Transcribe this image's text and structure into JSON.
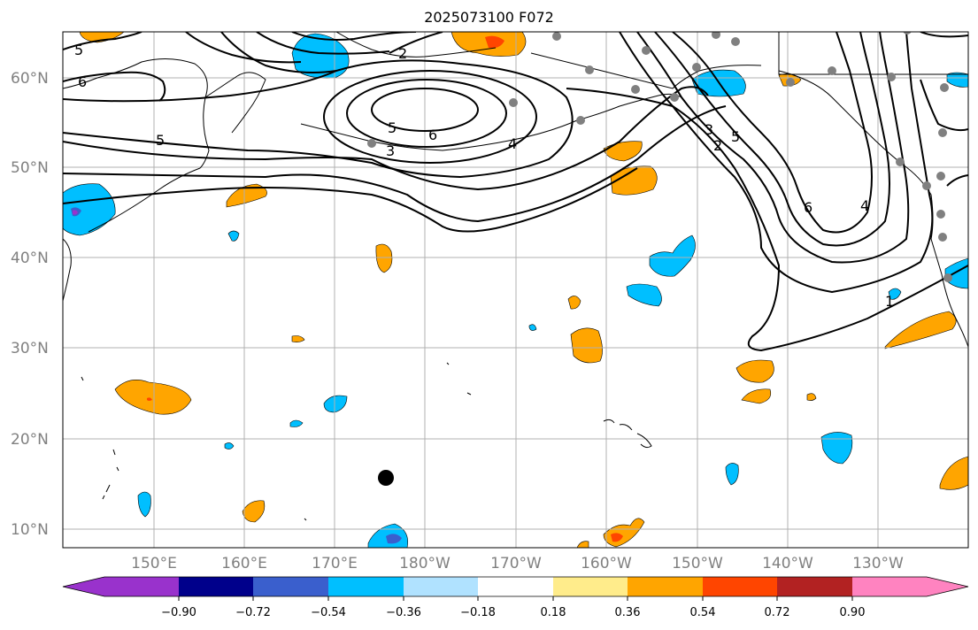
{
  "title": "2025073100 F072",
  "lat_ticks": [
    "60°N",
    "50°N",
    "40°N",
    "30°N",
    "20°N",
    "10°N"
  ],
  "lon_ticks": [
    "150°E",
    "160°E",
    "170°E",
    "180°W",
    "170°W",
    "160°W",
    "150°W",
    "140°W",
    "130°W"
  ],
  "colorbar": {
    "labels": [
      "−0.90",
      "−0.72",
      "−0.54",
      "−0.36",
      "−0.18",
      "0.18",
      "0.36",
      "0.54",
      "0.72",
      "0.90"
    ],
    "colors": [
      "#9932cc",
      "#00008b",
      "#3a5fcd",
      "#00bfff",
      "#b0e2ff",
      "#ffffff",
      "#ffec8b",
      "#ffa500",
      "#ff4500",
      "#b22222",
      "#ff83c0"
    ]
  },
  "contour_labels": [
    "5",
    "6",
    "2",
    "5",
    "6",
    "3",
    "5",
    "4",
    "3",
    "2",
    "5",
    "6",
    "4",
    "1"
  ],
  "colors": {
    "grid": "#b0b0b0",
    "positive": "#ffa500",
    "negative": "#00bfff",
    "station": "#808080"
  }
}
